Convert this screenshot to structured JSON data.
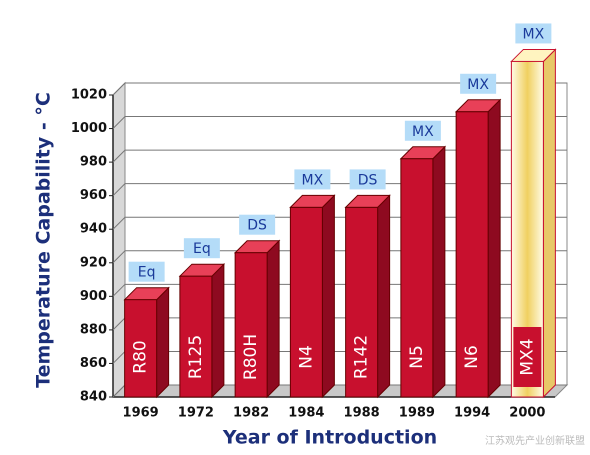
{
  "chart_data": {
    "type": "bar3d",
    "y_label": "Temperature Capability - °C",
    "x_label": "Year of Introduction",
    "categories": [
      "1969",
      "1972",
      "1982",
      "1984",
      "1988",
      "1989",
      "1994",
      "2000"
    ],
    "values": [
      898,
      912,
      926,
      953,
      953,
      982,
      1010,
      1040
    ],
    "bar_labels": [
      "R80",
      "R125",
      "R80H",
      "N4",
      "R142",
      "N5",
      "N6",
      "MX4"
    ],
    "tags": [
      "Eq",
      "Eq",
      "DS",
      "MX",
      "DS",
      "MX",
      "MX",
      "MX"
    ],
    "color": "#c8102e",
    "colors": [
      "#c8102e",
      "#c8102e",
      "#c8102e",
      "#c8102e",
      "#c8102e",
      "#c8102e",
      "#c8102e",
      "#f6e49a"
    ],
    "ylim": [
      840,
      1020
    ],
    "yticks": [
      840,
      860,
      880,
      900,
      920,
      940,
      960,
      980,
      1000,
      1020
    ],
    "grid": true,
    "watermark": "江苏观先产业创新联盟"
  }
}
